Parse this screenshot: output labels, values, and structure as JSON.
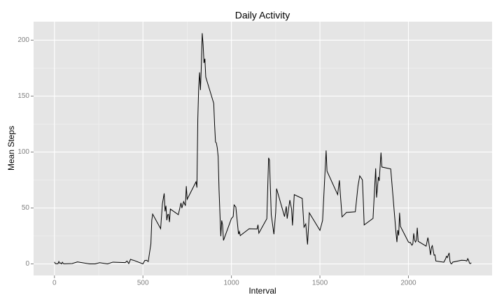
{
  "chart_data": {
    "type": "line",
    "title": "Daily Activity",
    "x_label": "Interval",
    "y_label": "Mean Steps",
    "x": [
      0,
      5,
      10,
      15,
      20,
      25,
      30,
      35,
      40,
      45,
      50,
      55,
      100,
      130,
      200,
      230,
      255,
      300,
      330,
      400,
      410,
      420,
      430,
      440,
      450,
      500,
      510,
      520,
      530,
      545,
      550,
      555,
      600,
      610,
      620,
      625,
      630,
      635,
      640,
      645,
      650,
      655,
      700,
      715,
      720,
      730,
      740,
      745,
      750,
      800,
      805,
      810,
      815,
      820,
      825,
      830,
      835,
      840,
      845,
      850,
      855,
      900,
      905,
      910,
      915,
      920,
      925,
      930,
      935,
      940,
      945,
      950,
      955,
      1000,
      1010,
      1015,
      1025,
      1040,
      1045,
      1050,
      1100,
      1145,
      1150,
      1155,
      1200,
      1210,
      1215,
      1225,
      1235,
      1240,
      1250,
      1255,
      1300,
      1310,
      1315,
      1330,
      1340,
      1345,
      1355,
      1400,
      1410,
      1420,
      1430,
      1440,
      1500,
      1515,
      1535,
      1540,
      1600,
      1610,
      1615,
      1625,
      1650,
      1700,
      1715,
      1725,
      1740,
      1745,
      1750,
      1800,
      1815,
      1820,
      1825,
      1830,
      1835,
      1845,
      1850,
      1900,
      1930,
      1935,
      1940,
      1945,
      1950,
      1955,
      2000,
      2005,
      2010,
      2020,
      2025,
      2030,
      2035,
      2040,
      2045,
      2050,
      2055,
      2100,
      2110,
      2115,
      2125,
      2130,
      2135,
      2145,
      2150,
      2155,
      2200,
      2210,
      2215,
      2220,
      2225,
      2230,
      2235,
      2240,
      2245,
      2250,
      2300,
      2320,
      2330,
      2335,
      2340,
      2345,
      2350,
      2355
    ],
    "series": [
      {
        "name": "Mean Steps",
        "color": "#000000",
        "values": [
          1.7,
          0.3,
          0.1,
          0.2,
          0.1,
          2.1,
          0.5,
          0.9,
          0,
          1.5,
          0.3,
          0.1,
          0.3,
          1.8,
          0,
          0,
          1.1,
          0,
          1.6,
          1.2,
          2.6,
          0.3,
          4.1,
          3.5,
          3.1,
          0,
          3.0,
          3.3,
          2.1,
          18,
          39,
          44.5,
          31.5,
          53.8,
          63,
          47,
          52,
          39,
          44,
          44.2,
          37.4,
          49,
          44,
          54.5,
          49.9,
          55.7,
          52.0,
          69.5,
          57.8,
          73.4,
          68.2,
          129.4,
          157.5,
          171.2,
          155.4,
          177.3,
          206.2,
          195.9,
          179.6,
          183.4,
          167,
          143.5,
          124,
          109.1,
          108,
          103.7,
          95.9,
          66.2,
          45.2,
          24.8,
          38.8,
          35,
          21,
          40.6,
          42.4,
          52.7,
          50.8,
          26.6,
          29,
          25.3,
          31.4,
          31.2,
          35,
          27.5,
          40.4,
          94.8,
          92.8,
          44,
          32.3,
          26.5,
          45.7,
          67.3,
          42.3,
          51.4,
          40.5,
          57,
          48.8,
          34.4,
          61.9,
          58.5,
          32.8,
          35.7,
          17.4,
          45.6,
          30,
          38.8,
          101.4,
          82.9,
          62,
          74.7,
          63.2,
          42,
          46,
          46.6,
          69.6,
          78.7,
          75.1,
          56.5,
          34.8,
          40.7,
          85.4,
          59.3,
          68,
          77.7,
          74.2,
          99.5,
          86.6,
          84.9,
          27.4,
          19.5,
          30.2,
          25.5,
          45.7,
          33.5,
          19.6,
          19.0,
          19.3,
          16.7,
          18,
          27.3,
          21.3,
          19.5,
          21.3,
          32.3,
          20.2,
          15.9,
          23.5,
          19.2,
          8,
          14.7,
          16.3,
          7.8,
          8.1,
          2.6,
          1.5,
          4.6,
          6.8,
          5.6,
          7.9,
          9.8,
          2.2,
          0.3,
          0.1,
          1.6,
          3.3,
          3.1,
          2.6,
          4.7,
          3.3,
          0.6,
          0.2,
          1.1
        ]
      }
    ],
    "xlim": [
      -117.75,
      2472.75
    ],
    "xticks": [
      0,
      500,
      1000,
      1500,
      2000
    ],
    "ylim": [
      -10.3,
      216.5
    ],
    "yticks": [
      0,
      50,
      100,
      150,
      200
    ],
    "grid": true
  }
}
